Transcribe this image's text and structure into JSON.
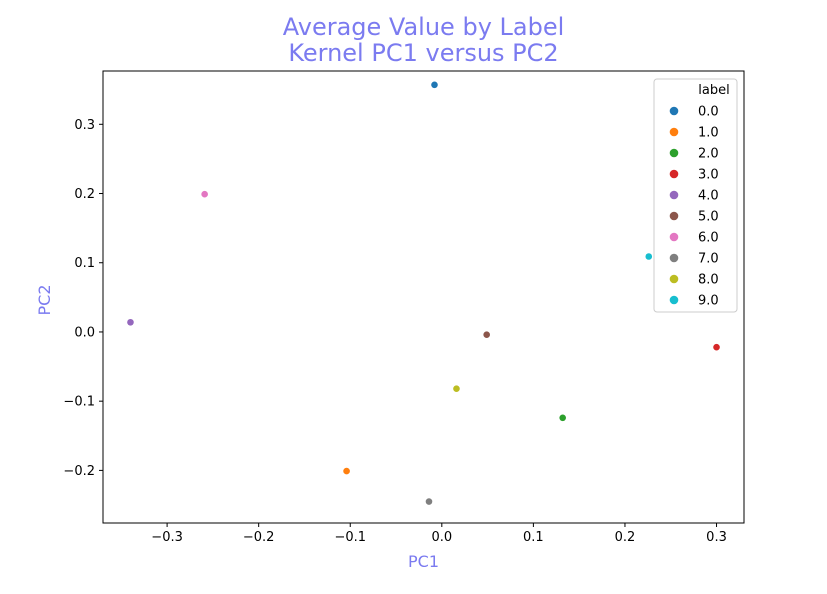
{
  "chart_data": {
    "type": "scatter",
    "title_line1": "Average Value by Label",
    "title_line2": "Kernel PC1 versus PC2",
    "xlabel": "PC1",
    "ylabel": "PC2",
    "xlim": [
      -0.37,
      0.33
    ],
    "ylim": [
      -0.276,
      0.377
    ],
    "x_ticks": [
      {
        "value": -0.3,
        "label": "−0.3"
      },
      {
        "value": -0.2,
        "label": "−0.2"
      },
      {
        "value": -0.1,
        "label": "−0.1"
      },
      {
        "value": 0.0,
        "label": "0.0"
      },
      {
        "value": 0.1,
        "label": "0.1"
      },
      {
        "value": 0.2,
        "label": "0.2"
      },
      {
        "value": 0.3,
        "label": "0.3"
      }
    ],
    "y_ticks": [
      {
        "value": -0.2,
        "label": "−0.2"
      },
      {
        "value": -0.1,
        "label": "−0.1"
      },
      {
        "value": 0.0,
        "label": "0.0"
      },
      {
        "value": 0.1,
        "label": "0.1"
      },
      {
        "value": 0.2,
        "label": "0.2"
      },
      {
        "value": 0.3,
        "label": "0.3"
      }
    ],
    "grid": false,
    "legend": {
      "title": "label",
      "placement": "top-right"
    },
    "points": [
      {
        "label": "0.0",
        "x": -0.008,
        "y": 0.357,
        "color": "#1f77b4"
      },
      {
        "label": "1.0",
        "x": -0.104,
        "y": -0.201,
        "color": "#ff7f0e"
      },
      {
        "label": "2.0",
        "x": 0.132,
        "y": -0.124,
        "color": "#2ca02c"
      },
      {
        "label": "3.0",
        "x": 0.3,
        "y": -0.022,
        "color": "#d62728"
      },
      {
        "label": "4.0",
        "x": -0.34,
        "y": 0.014,
        "color": "#9467bd"
      },
      {
        "label": "5.0",
        "x": 0.049,
        "y": -0.004,
        "color": "#8c564b"
      },
      {
        "label": "6.0",
        "x": -0.259,
        "y": 0.199,
        "color": "#e377c2"
      },
      {
        "label": "7.0",
        "x": -0.014,
        "y": -0.245,
        "color": "#7f7f7f"
      },
      {
        "label": "8.0",
        "x": 0.016,
        "y": -0.082,
        "color": "#bcbd22"
      },
      {
        "label": "9.0",
        "x": 0.226,
        "y": 0.109,
        "color": "#17becf"
      }
    ]
  },
  "colors": {
    "title": "#7b7bf0",
    "axis_label": "#7b7bf0",
    "axis": "#000000",
    "legend_border": "#cccccc"
  }
}
